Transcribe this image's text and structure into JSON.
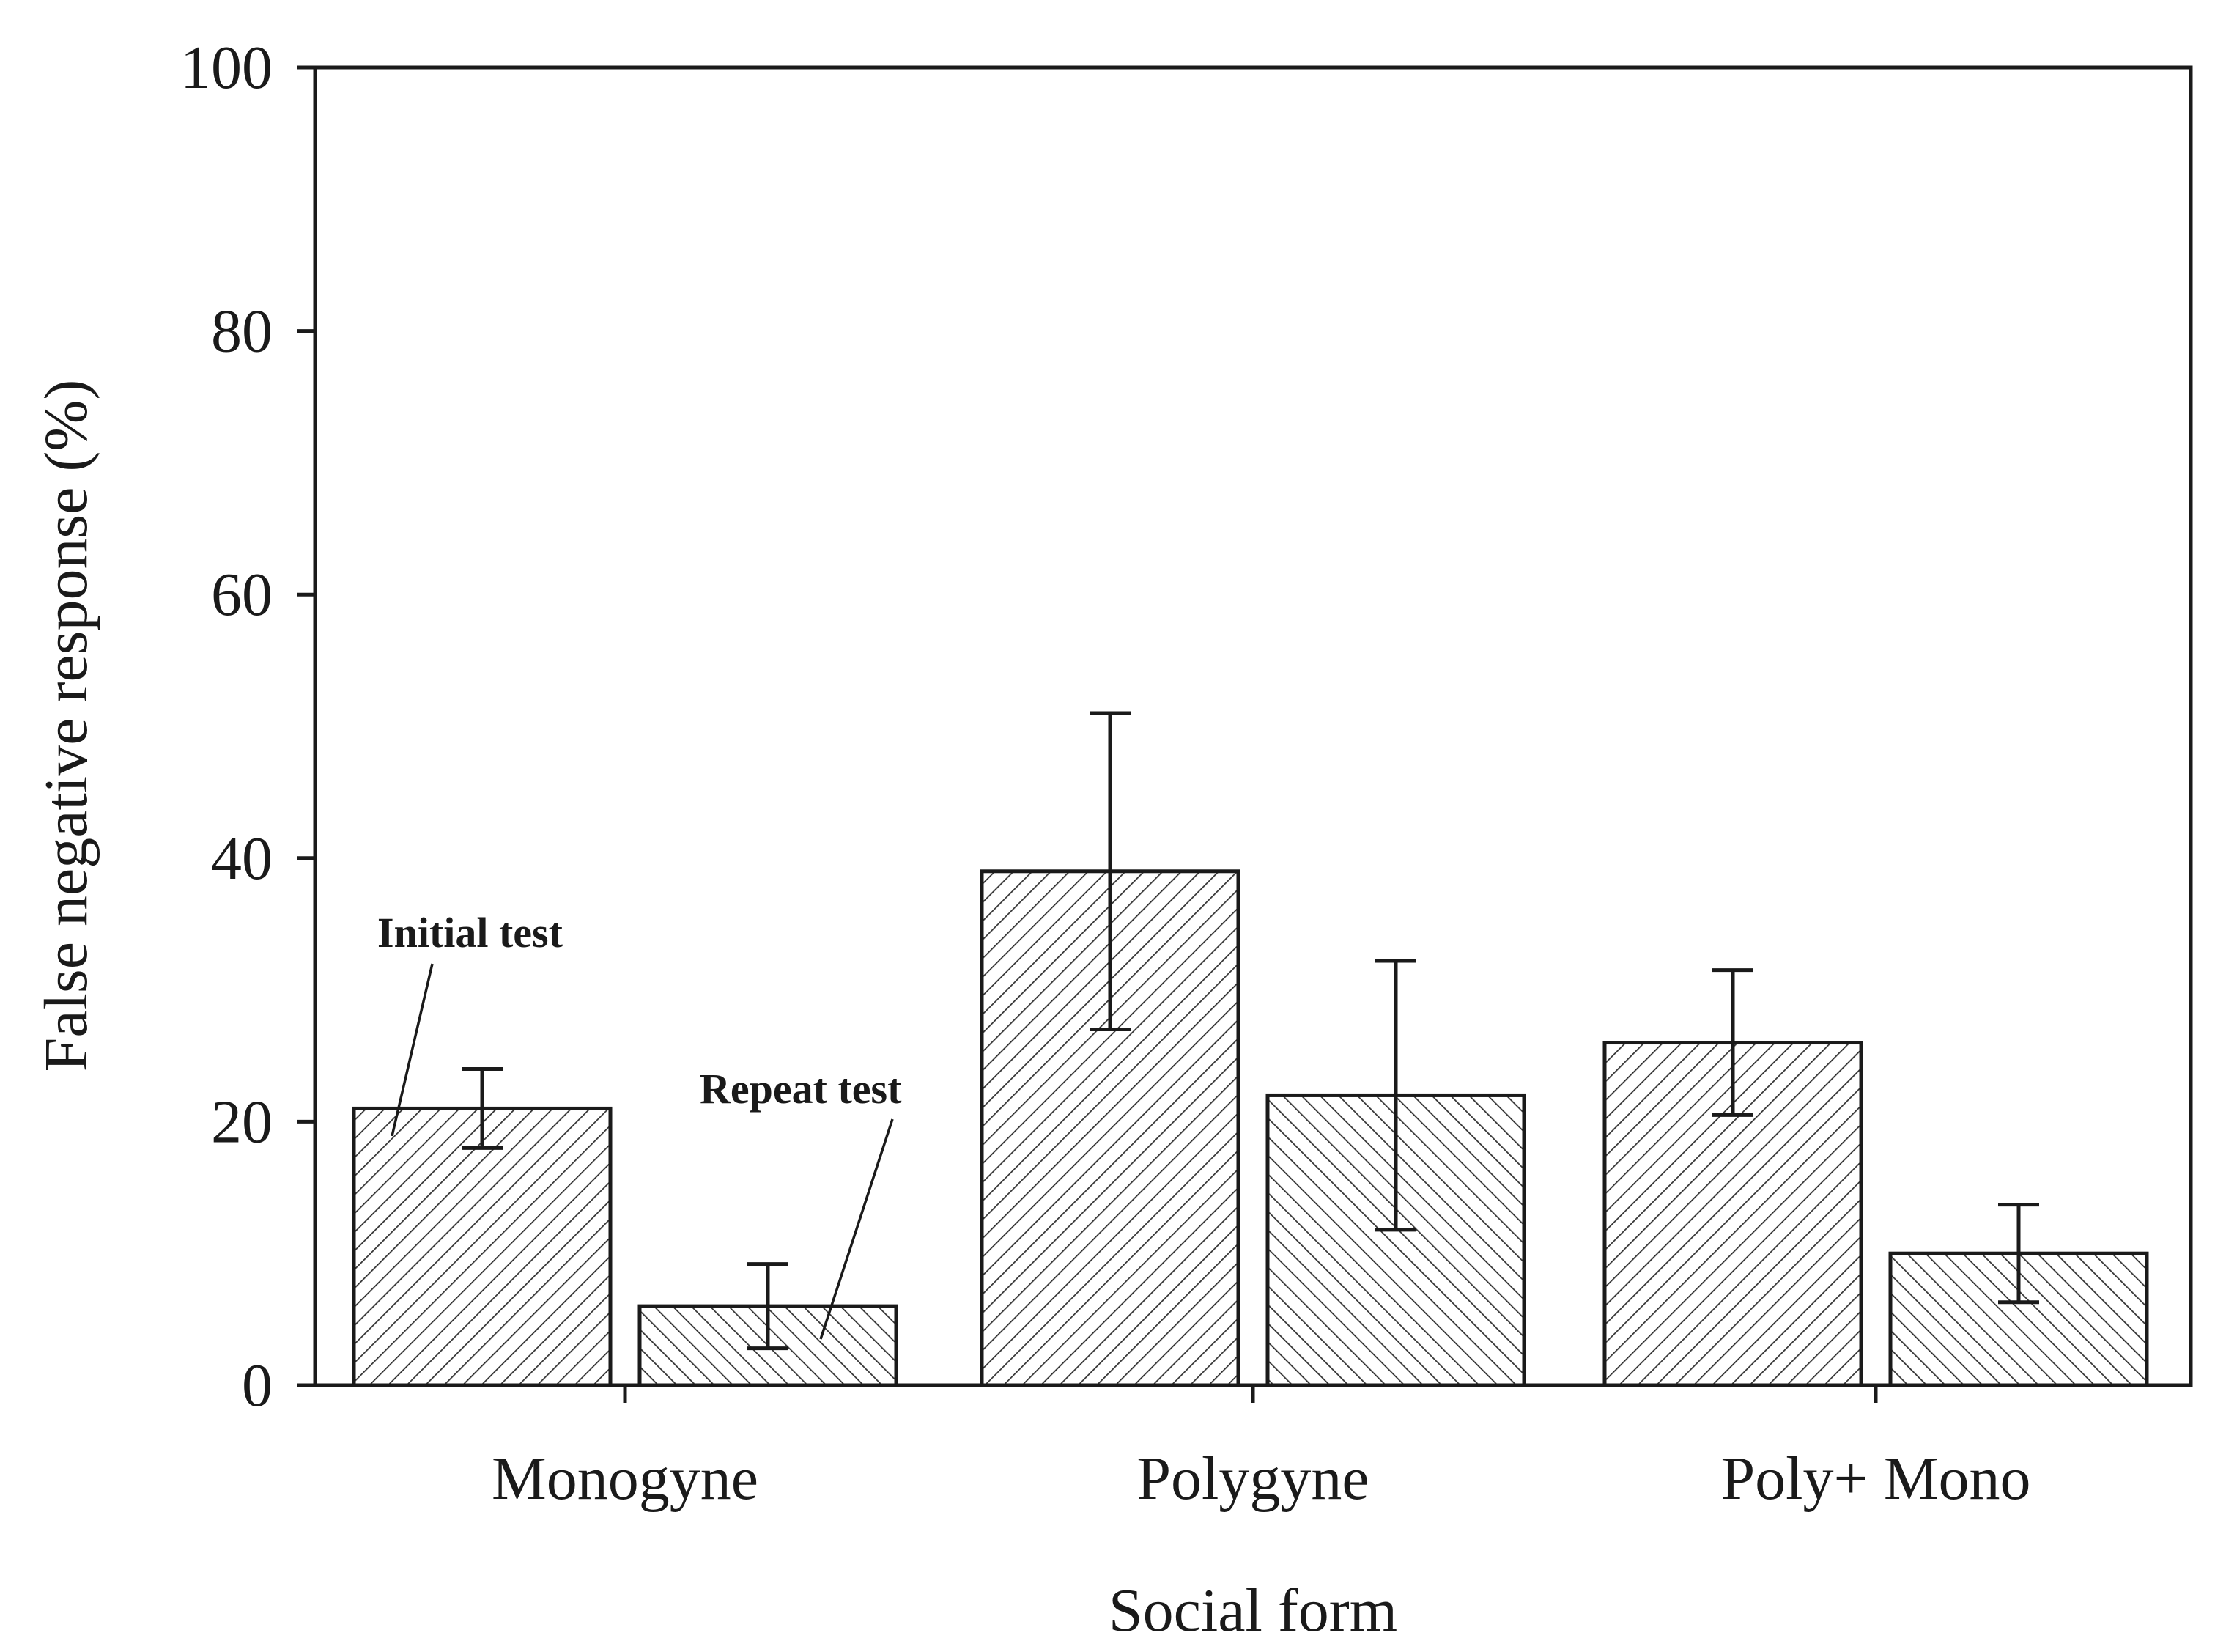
{
  "chart_data": {
    "type": "bar",
    "title": "",
    "xlabel": "Social form",
    "ylabel": "False negative response (%)",
    "ylim": [
      0,
      100
    ],
    "yticks": [
      0,
      20,
      40,
      60,
      80,
      100
    ],
    "categories": [
      "Monogyne",
      "Polygyne",
      "Poly+ Mono"
    ],
    "series": [
      {
        "name": "Initial test",
        "values": [
          21,
          39,
          26
        ],
        "errors": [
          3,
          12,
          5.5
        ],
        "hatch": "forward"
      },
      {
        "name": "Repeat test",
        "values": [
          6,
          22,
          10
        ],
        "errors": [
          3.2,
          10.2,
          3.7
        ],
        "hatch": "backward"
      }
    ],
    "annotations": [
      {
        "text": "Initial test",
        "target_series": 0,
        "target_category": 0
      },
      {
        "text": "Repeat test",
        "target_series": 1,
        "target_category": 0
      }
    ],
    "colors": {
      "axis": "#1a1a1a",
      "bar_fill": "#ffffff",
      "hatch": "#333333"
    }
  }
}
